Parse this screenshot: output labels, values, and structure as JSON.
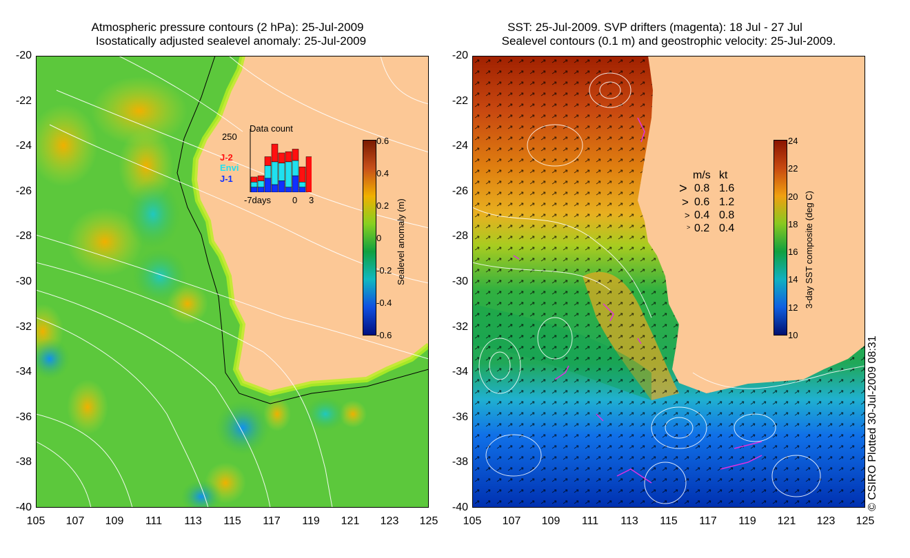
{
  "left_map": {
    "title_line1": "Atmospheric pressure contours (2 hPa): 25-Jul-2009",
    "title_line2": "Isostatically adjusted sealevel anomaly: 25-Jul-2009",
    "y_ticks": [
      "-20",
      "-22",
      "-24",
      "-26",
      "-28",
      "-30",
      "-32",
      "-34",
      "-36",
      "-38",
      "-40"
    ],
    "x_ticks": [
      "105",
      "107",
      "109",
      "111",
      "113",
      "115",
      "117",
      "119",
      "121",
      "123",
      "125"
    ],
    "colorbar": {
      "label": "Sealevel anomaly (m)",
      "ticks": [
        "0.6",
        "0.4",
        "0.2",
        "0",
        "-0.2",
        "-0.4",
        "-0.6"
      ],
      "colors": [
        "#7a1a00",
        "#c8501a",
        "#f0b000",
        "#88d020",
        "#10a040",
        "#10b8c0",
        "#1050e0",
        "#001080"
      ]
    },
    "inset": {
      "title": "Data count",
      "max_label": "250",
      "series_labels": [
        "J-2",
        "Envi",
        "J-1"
      ],
      "series_colors": [
        "#ff1010",
        "#20e0f0",
        "#1030ff"
      ],
      "x_label_left": "-7days",
      "x_label_mid": "0",
      "x_label_right": "3",
      "bars": [
        {
          "j2": 20,
          "envi": 20,
          "j1": 20
        },
        {
          "j2": 20,
          "envi": 25,
          "j1": 20
        },
        {
          "j2": 35,
          "envi": 50,
          "j1": 55
        },
        {
          "j2": 70,
          "envi": 90,
          "j1": 30
        },
        {
          "j2": 40,
          "envi": 70,
          "j1": 45
        },
        {
          "j2": 40,
          "envi": 100,
          "j1": 20
        },
        {
          "j2": 45,
          "envi": 60,
          "j1": 65
        },
        {
          "j2": 60,
          "envi": 20,
          "j1": 20
        },
        {
          "j2": 140,
          "envi": 0,
          "j1": 0
        }
      ]
    }
  },
  "right_map": {
    "title_line1": "SST: 25-Jul-2009. SVP drifters (magenta): 18 Jul - 27 Jul",
    "title_line2": "Sealevel contours (0.1 m) and geostrophic velocity: 25-Jul-2009.",
    "y_ticks": [
      "-20",
      "-22",
      "-24",
      "-26",
      "-28",
      "-30",
      "-32",
      "-34",
      "-36",
      "-38",
      "-40"
    ],
    "x_ticks": [
      "105",
      "107",
      "109",
      "111",
      "113",
      "115",
      "117",
      "119",
      "121",
      "123",
      "125"
    ],
    "colorbar": {
      "label": "3-day SST composite (deg C)",
      "ticks": [
        "24",
        "22",
        "20",
        "18",
        "16",
        "14",
        "12",
        "10"
      ],
      "colors": [
        "#8a1400",
        "#c84a10",
        "#f0a010",
        "#88c820",
        "#10a040",
        "#10b0c0",
        "#1060e0",
        "#001070"
      ]
    },
    "velocity_legend": {
      "header_ms": "m/s",
      "header_kt": "kt",
      "rows": [
        {
          "ms": "0.8",
          "kt": "1.6"
        },
        {
          "ms": "0.6",
          "kt": "1.2"
        },
        {
          "ms": "0.4",
          "kt": "0.8"
        },
        {
          "ms": "0.2",
          "kt": "0.4"
        }
      ]
    }
  },
  "colors": {
    "land": "#fcc896",
    "frame": "#000000",
    "contour": "#ffffff",
    "drifter": "#e030e0"
  },
  "copyright": "© CSIRO Plotted 30-Jul-2009 08:31"
}
